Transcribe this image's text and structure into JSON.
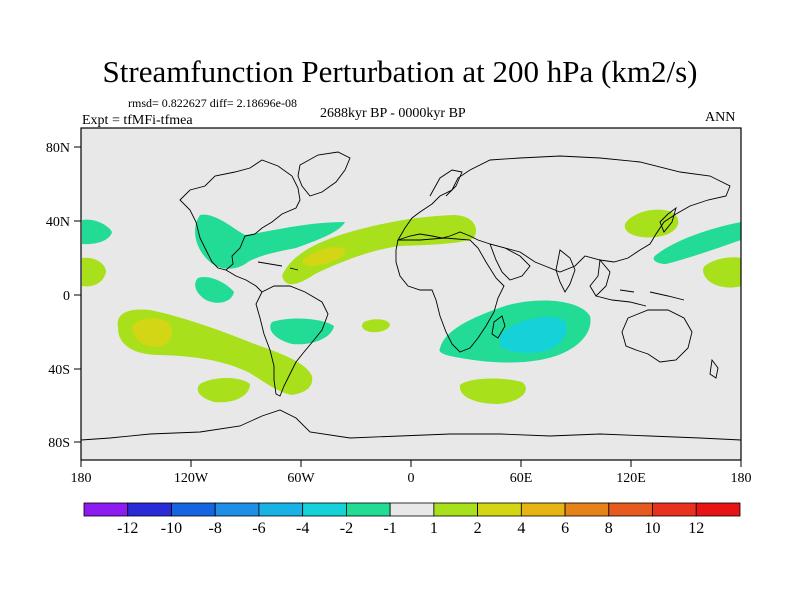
{
  "title": "Streamfunction Perturbation at 200 hPa (km2/s)",
  "stats": "rmsd= 0.822627 diff= 2.18696e-08",
  "experiment": "Expt = tfMFi-tfmea",
  "period": "2688kyr BP - 0000kyr BP",
  "season": "ANN",
  "y_ticks": [
    "80N",
    "40N",
    "0",
    "40S",
    "80S"
  ],
  "x_ticks": [
    "180",
    "120W",
    "60W",
    "0",
    "60E",
    "120E",
    "180"
  ],
  "colorbar_labels": [
    "-12",
    "-10",
    "-8",
    "-6",
    "-4",
    "-2",
    "-1",
    "1",
    "2",
    "4",
    "6",
    "8",
    "10",
    "12"
  ],
  "colorbar_colors": [
    "#8c1cf0",
    "#2a2ad8",
    "#1466e0",
    "#1e8ee6",
    "#18b2e6",
    "#14d2d8",
    "#22dc96",
    "#e8e8e8",
    "#a8e01c",
    "#d2d614",
    "#e6b414",
    "#e6821a",
    "#e65a1e",
    "#e8321e",
    "#e81414"
  ],
  "colors": {
    "land_outline": "#000000",
    "background_fill": "#e8e8e8"
  },
  "chart_data": {
    "type": "map",
    "variable": "streamfunction perturbation",
    "level_hPa": 200,
    "units": "km2/s",
    "lon_range": [
      -180,
      180
    ],
    "lat_range": [
      -90,
      90
    ],
    "contour_levels": [
      -12,
      -10,
      -8,
      -6,
      -4,
      -2,
      -1,
      1,
      2,
      4,
      6,
      8,
      10,
      12
    ],
    "anomalies": [
      {
        "name": "north-atlantic-negative",
        "sign": "negative",
        "approx_value": -2,
        "center_lon": -100,
        "center_lat": 35
      },
      {
        "name": "atlantic-positive-belt",
        "sign": "positive",
        "approx_value": 2,
        "center_lon": -40,
        "center_lat": 22
      },
      {
        "name": "south-pacific-positive",
        "sign": "positive",
        "approx_value": 4,
        "center_lon": -140,
        "center_lat": -20
      },
      {
        "name": "south-indian-negative",
        "sign": "negative",
        "approx_value": -4,
        "center_lon": 75,
        "center_lat": -20
      },
      {
        "name": "east-asia-positive",
        "sign": "positive",
        "approx_value": 2,
        "center_lon": 135,
        "center_lat": 38
      },
      {
        "name": "north-pacific-negative",
        "sign": "negative",
        "approx_value": -2,
        "center_lon": 155,
        "center_lat": 25
      },
      {
        "name": "south-atlantic-negative",
        "sign": "negative",
        "approx_value": -2,
        "center_lon": -45,
        "center_lat": -15
      },
      {
        "name": "southern-ocean-positive",
        "sign": "positive",
        "approx_value": 2,
        "center_lon": 45,
        "center_lat": -45
      }
    ]
  }
}
